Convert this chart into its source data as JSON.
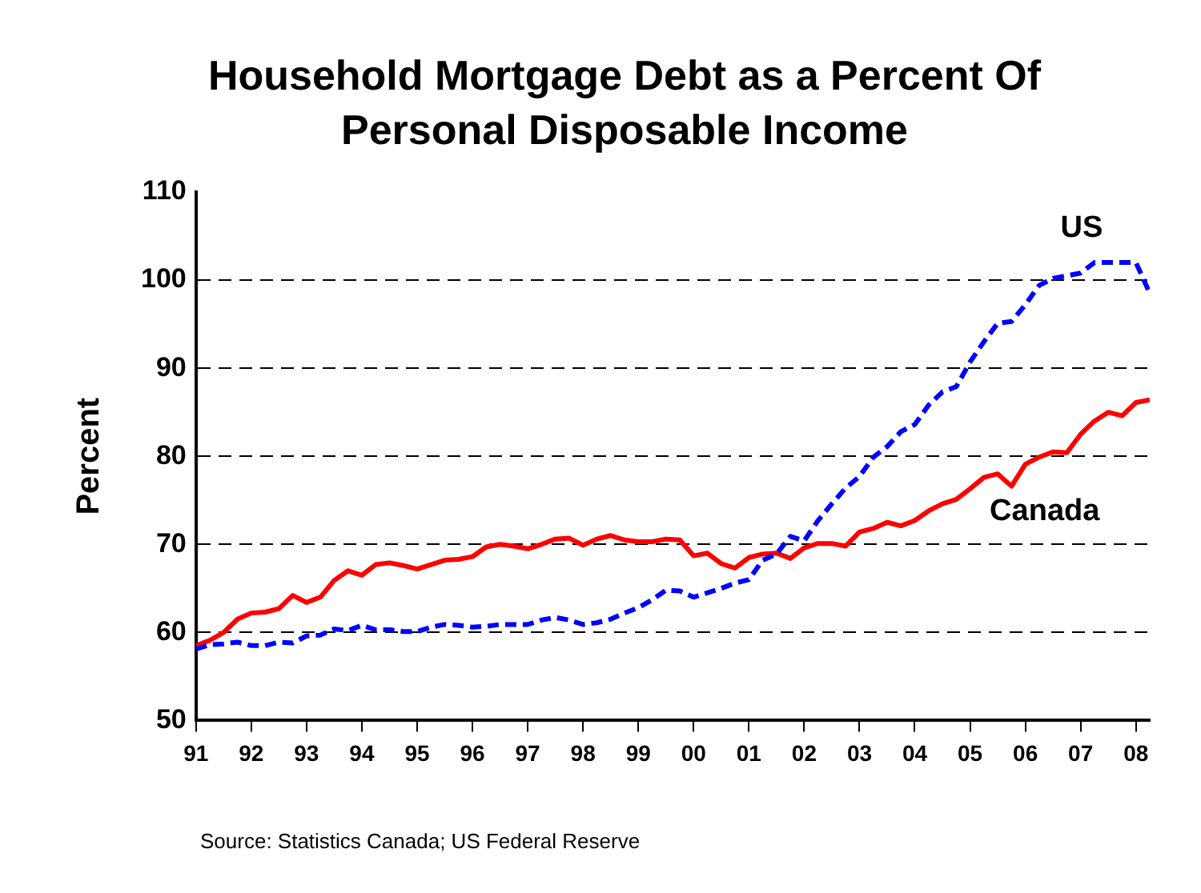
{
  "chart_data": {
    "type": "line",
    "title": "Household Mortgage Debt as a Percent Of Personal Disposable Income",
    "ylabel": "Percent",
    "x": [
      1991,
      1991.25,
      1991.5,
      1991.75,
      1992,
      1992.25,
      1992.5,
      1992.75,
      1993,
      1993.25,
      1993.5,
      1993.75,
      1994,
      1994.25,
      1994.5,
      1994.75,
      1995,
      1995.25,
      1995.5,
      1995.75,
      1996,
      1996.25,
      1996.5,
      1996.75,
      1997,
      1997.25,
      1997.5,
      1997.75,
      1998,
      1998.25,
      1998.5,
      1998.75,
      1999,
      1999.25,
      1999.5,
      1999.75,
      2000,
      2000.25,
      2000.5,
      2000.75,
      2001,
      2001.25,
      2001.5,
      2001.75,
      2002,
      2002.25,
      2002.5,
      2002.75,
      2003,
      2003.25,
      2003.5,
      2003.75,
      2004,
      2004.25,
      2004.5,
      2004.75,
      2005,
      2005.25,
      2005.5,
      2005.75,
      2006,
      2006.25,
      2006.5,
      2006.75,
      2007,
      2007.25,
      2007.5,
      2007.75,
      2008,
      2008.25
    ],
    "series": [
      {
        "name": "US",
        "color": "#0000ff",
        "line_style": "dashed",
        "values": [
          58.1,
          58.6,
          58.7,
          58.9,
          58.5,
          58.5,
          58.9,
          58.8,
          59.6,
          59.7,
          60.4,
          60.2,
          60.8,
          60.3,
          60.3,
          60.1,
          60.1,
          60.6,
          60.9,
          60.8,
          60.6,
          60.7,
          60.9,
          60.9,
          60.9,
          61.4,
          61.7,
          61.4,
          60.9,
          61.1,
          61.5,
          62.2,
          62.8,
          63.7,
          64.8,
          64.7,
          64.0,
          64.5,
          65.0,
          65.6,
          66.0,
          68.2,
          68.9,
          70.9,
          70.4,
          72.7,
          74.6,
          76.4,
          77.7,
          79.9,
          81.1,
          82.8,
          83.6,
          85.8,
          87.3,
          87.9,
          90.7,
          93.0,
          95.1,
          95.3,
          97.2,
          99.4,
          100.2,
          100.5,
          100.8,
          102.0,
          102.0,
          102.0,
          102.0,
          98.5
        ]
      },
      {
        "name": "Canada",
        "color": "#ff0000",
        "line_style": "solid",
        "values": [
          58.5,
          59.1,
          60.0,
          61.5,
          62.2,
          62.3,
          62.7,
          64.2,
          63.4,
          64.0,
          65.9,
          67.0,
          66.5,
          67.7,
          67.9,
          67.6,
          67.2,
          67.7,
          68.2,
          68.3,
          68.6,
          69.7,
          70.0,
          69.8,
          69.5,
          70.0,
          70.6,
          70.7,
          69.9,
          70.6,
          71.0,
          70.5,
          70.3,
          70.3,
          70.6,
          70.5,
          68.7,
          69.0,
          67.8,
          67.3,
          68.5,
          68.9,
          69.0,
          68.4,
          69.6,
          70.1,
          70.1,
          69.8,
          71.4,
          71.8,
          72.5,
          72.1,
          72.7,
          73.8,
          74.6,
          75.1,
          76.3,
          77.6,
          78.0,
          76.6,
          79.1,
          79.9,
          80.5,
          80.4,
          82.5,
          84.0,
          85.0,
          84.6,
          86.1,
          86.4
        ]
      }
    ],
    "xlim": [
      1991,
      2008.25
    ],
    "xticks": [
      {
        "value": 1991,
        "label": "91"
      },
      {
        "value": 1992,
        "label": "92"
      },
      {
        "value": 1993,
        "label": "93"
      },
      {
        "value": 1994,
        "label": "94"
      },
      {
        "value": 1995,
        "label": "95"
      },
      {
        "value": 1996,
        "label": "96"
      },
      {
        "value": 1997,
        "label": "97"
      },
      {
        "value": 1998,
        "label": "98"
      },
      {
        "value": 1999,
        "label": "99"
      },
      {
        "value": 2000,
        "label": "00"
      },
      {
        "value": 2001,
        "label": "01"
      },
      {
        "value": 2002,
        "label": "02"
      },
      {
        "value": 2003,
        "label": "03"
      },
      {
        "value": 2004,
        "label": "04"
      },
      {
        "value": 2005,
        "label": "05"
      },
      {
        "value": 2006,
        "label": "06"
      },
      {
        "value": 2007,
        "label": "07"
      },
      {
        "value": 2008,
        "label": "08"
      }
    ],
    "ylim": [
      50,
      110
    ],
    "yticks": [
      50,
      60,
      70,
      80,
      90,
      100,
      110
    ],
    "grid": "y",
    "legend": false,
    "marker": "none",
    "annotations": [
      "Source:  Statistics Canada; US Federal Reserve"
    ]
  }
}
